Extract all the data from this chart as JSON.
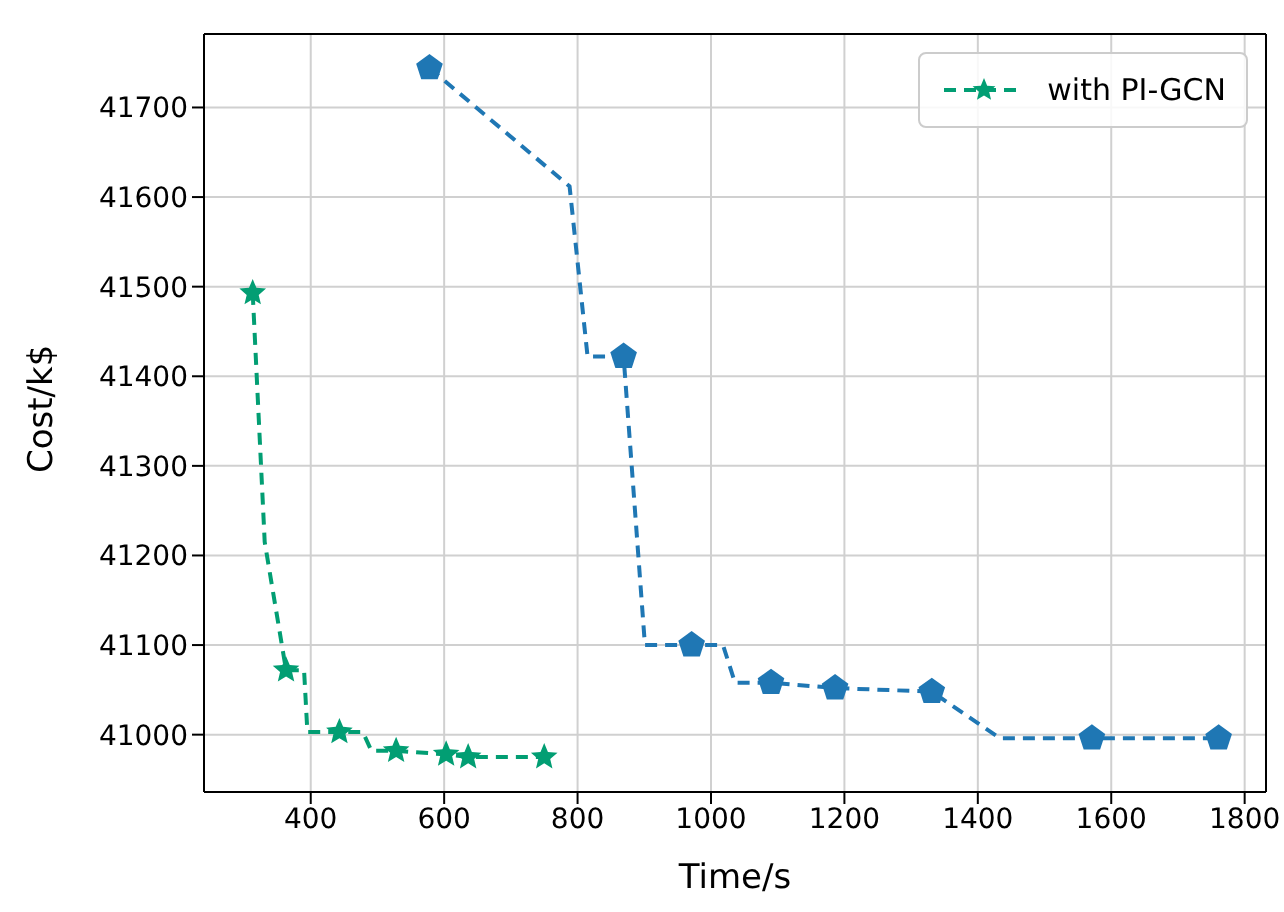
{
  "chart_data": {
    "type": "line",
    "xlabel": "Time/s",
    "ylabel": "Cost/k$",
    "xlim": [
      240,
      1832
    ],
    "ylim": [
      40936,
      41782
    ],
    "xticks": [
      400,
      600,
      800,
      1000,
      1200,
      1400,
      1600,
      1800
    ],
    "yticks": [
      41000,
      41100,
      41200,
      41300,
      41400,
      41500,
      41600,
      41700
    ],
    "grid": true,
    "legend": "top right",
    "series": [
      {
        "color": "#1f77b4",
        "line_style": "dashed",
        "marker": "none",
        "x": [
          578,
          788,
          815,
          869,
          901,
          971,
          1018,
          1036,
          1090,
          1186,
          1331,
          1433,
          1571,
          1761
        ],
        "values": [
          41744,
          41612,
          41422,
          41422,
          41100,
          41100,
          41100,
          41058,
          41058,
          41052,
          41048,
          40996,
          40996,
          40996
        ]
      },
      {
        "type": "scatter",
        "color": "#1f77b4",
        "x": [
          578,
          869,
          971,
          1090,
          1186,
          1331,
          1571,
          1761
        ],
        "values": [
          41744,
          41422,
          41100,
          41058,
          41052,
          41048,
          40996,
          40996
        ]
      },
      {
        "color": "#029e73",
        "line_style": "dashed",
        "marker": "none",
        "x": [
          313,
          331,
          363,
          390,
          395,
          443,
          478,
          491,
          528,
          603,
          636,
          750
        ],
        "values": [
          41493,
          41215,
          41072,
          41072,
          41003,
          41003,
          41003,
          40982,
          40982,
          40978,
          40975,
          40975
        ]
      },
      {
        "type": "scatter",
        "name": "with PI-GCN",
        "color": "#029e73",
        "marker": "star",
        "x": [
          313,
          363,
          443,
          528,
          603,
          636,
          750
        ],
        "values": [
          41493,
          41072,
          41003,
          40982,
          40978,
          40975,
          40975
        ]
      }
    ]
  }
}
